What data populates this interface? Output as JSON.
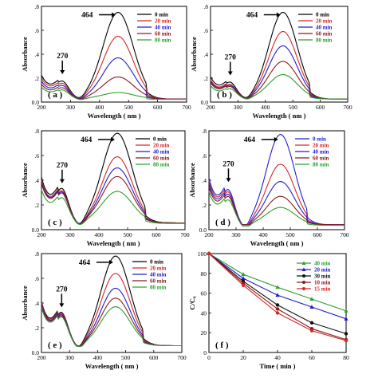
{
  "chart_data": [
    {
      "type": "line",
      "panel": "a",
      "ylabel": "Absorbance",
      "xlabel": "Wavelength ( nm )",
      "xlim": [
        200,
        700
      ],
      "ylim": [
        0.0,
        0.8
      ],
      "xticks": [
        "200",
        "300",
        "400",
        "500",
        "600",
        "700"
      ],
      "yticks": [
        ".2",
        ".4",
        ".6",
        ".8"
      ],
      "ytick_zero": "0.0",
      "annotations": [
        "464",
        "270"
      ],
      "series": [
        {
          "name": "0 min",
          "color": "#000000",
          "baseline": 0.03,
          "p1": 0.16,
          "v1": 0.08,
          "peak": 0.72,
          "tail": 0.02
        },
        {
          "name": "20 min",
          "color": "#d62728",
          "baseline": 0.03,
          "p1": 0.14,
          "v1": 0.07,
          "peak": 0.52,
          "tail": 0.02
        },
        {
          "name": "40 min",
          "color": "#1f1fd0",
          "baseline": 0.03,
          "p1": 0.12,
          "v1": 0.06,
          "peak": 0.34,
          "tail": 0.02
        },
        {
          "name": "60 min",
          "color": "#8b1a1a",
          "baseline": 0.03,
          "p1": 0.1,
          "v1": 0.05,
          "peak": 0.18,
          "tail": 0.02
        },
        {
          "name": "80 min",
          "color": "#2ca02c",
          "baseline": 0.03,
          "p1": 0.08,
          "v1": 0.045,
          "peak": 0.05,
          "tail": 0.015
        }
      ]
    },
    {
      "type": "line",
      "panel": "b",
      "ylabel": "Absorbance",
      "xlabel": "Wavelength ( nm )",
      "xlim": [
        200,
        700
      ],
      "ylim": [
        0.0,
        0.8
      ],
      "xticks": [
        "200",
        "300",
        "400",
        "500",
        "600",
        "700"
      ],
      "yticks": [
        ".2",
        ".4",
        ".6",
        ".8"
      ],
      "ytick_zero": "0.0",
      "annotations": [
        "464",
        "270"
      ],
      "series": [
        {
          "name": "0 min",
          "color": "#000000",
          "baseline": 0.03,
          "p1": 0.15,
          "v1": 0.08,
          "peak": 0.72,
          "tail": 0.02
        },
        {
          "name": "20 min",
          "color": "#d62728",
          "baseline": 0.03,
          "p1": 0.13,
          "v1": 0.07,
          "peak": 0.56,
          "tail": 0.02
        },
        {
          "name": "40 min",
          "color": "#1f1fd0",
          "baseline": 0.03,
          "p1": 0.12,
          "v1": 0.06,
          "peak": 0.44,
          "tail": 0.02
        },
        {
          "name": "60 min",
          "color": "#8b1a1a",
          "baseline": 0.03,
          "p1": 0.11,
          "v1": 0.055,
          "peak": 0.31,
          "tail": 0.02
        },
        {
          "name": "80 min",
          "color": "#2ca02c",
          "baseline": 0.03,
          "p1": 0.09,
          "v1": 0.05,
          "peak": 0.2,
          "tail": 0.02
        }
      ]
    },
    {
      "type": "line",
      "panel": "c",
      "ylabel": "Absorbance",
      "xlabel": "Wavelength ( nm )",
      "xlim": [
        200,
        700
      ],
      "ylim": [
        0.0,
        0.8
      ],
      "xticks": [
        "200",
        "300",
        "400",
        "500",
        "600",
        "700"
      ],
      "yticks": [
        ".2",
        ".4",
        ".6",
        ".8"
      ],
      "ytick_zero": "0.0",
      "annotations": [
        "464",
        "270"
      ],
      "series": [
        {
          "name": "0 min",
          "color": "#000000",
          "baseline": 0.06,
          "p1": 0.3,
          "v1": 0.14,
          "peak": 0.72,
          "tail": 0.05
        },
        {
          "name": "20 min",
          "color": "#d62728",
          "baseline": 0.06,
          "p1": 0.28,
          "v1": 0.13,
          "peak": 0.53,
          "tail": 0.05
        },
        {
          "name": "40 min",
          "color": "#1f1fd0",
          "baseline": 0.06,
          "p1": 0.27,
          "v1": 0.12,
          "peak": 0.44,
          "tail": 0.05
        },
        {
          "name": "60 min",
          "color": "#8b1a1a",
          "baseline": 0.06,
          "p1": 0.26,
          "v1": 0.12,
          "peak": 0.37,
          "tail": 0.05
        },
        {
          "name": "80 min",
          "color": "#2ca02c",
          "baseline": 0.06,
          "p1": 0.22,
          "v1": 0.11,
          "peak": 0.25,
          "tail": 0.04
        }
      ]
    },
    {
      "type": "line",
      "panel": "d",
      "ylabel": "Absorbance",
      "xlabel": "Wavelength ( nm )",
      "xlim": [
        200,
        700
      ],
      "ylim": [
        0.0,
        0.8
      ],
      "xticks": [
        "200",
        "300",
        "400",
        "500",
        "600",
        "700"
      ],
      "yticks": [
        ".2",
        ".4",
        ".6",
        ".8"
      ],
      "ytick_zero": "0.0",
      "annotations": [
        "464",
        "270"
      ],
      "series": [
        {
          "name": "0 min",
          "color": "#1f1fd0",
          "baseline": 0.04,
          "p1": 0.31,
          "v1": 0.13,
          "peak": 0.73,
          "tail": 0.04
        },
        {
          "name": "20 min",
          "color": "#d62728",
          "baseline": 0.04,
          "p1": 0.29,
          "v1": 0.12,
          "peak": 0.49,
          "tail": 0.04
        },
        {
          "name": "40 min",
          "color": "#1f1fd0",
          "baseline": 0.04,
          "p1": 0.27,
          "v1": 0.11,
          "peak": 0.35,
          "tail": 0.04
        },
        {
          "name": "60 min",
          "color": "#8b1a1a",
          "baseline": 0.04,
          "p1": 0.25,
          "v1": 0.1,
          "peak": 0.23,
          "tail": 0.04
        },
        {
          "name": "80 min",
          "color": "#2ca02c",
          "baseline": 0.04,
          "p1": 0.22,
          "v1": 0.09,
          "peak": 0.14,
          "tail": 0.03
        }
      ]
    },
    {
      "type": "line",
      "panel": "e",
      "ylabel": "Absorbance",
      "xlabel": "Wavelength ( nm )",
      "xlim": [
        200,
        700
      ],
      "ylim": [
        0.0,
        0.8
      ],
      "xticks": [
        "200",
        "300",
        "400",
        "500",
        "600",
        "700"
      ],
      "yticks": [
        ".2",
        ".4",
        ".6",
        ".8"
      ],
      "ytick_zero": "0.0",
      "annotations": [
        "464",
        "270"
      ],
      "series": [
        {
          "name": "0 min",
          "color": "#000000",
          "baseline": 0.06,
          "p1": 0.29,
          "v1": 0.14,
          "peak": 0.72,
          "tail": 0.05
        },
        {
          "name": "20 min",
          "color": "#d62728",
          "baseline": 0.06,
          "p1": 0.28,
          "v1": 0.13,
          "peak": 0.58,
          "tail": 0.05
        },
        {
          "name": "40 min",
          "color": "#1f1fd0",
          "baseline": 0.06,
          "p1": 0.27,
          "v1": 0.13,
          "peak": 0.46,
          "tail": 0.05
        },
        {
          "name": "60 min",
          "color": "#8b1a1a",
          "baseline": 0.06,
          "p1": 0.26,
          "v1": 0.12,
          "peak": 0.38,
          "tail": 0.05
        },
        {
          "name": "80 min",
          "color": "#2ca02c",
          "baseline": 0.06,
          "p1": 0.25,
          "v1": 0.12,
          "peak": 0.31,
          "tail": 0.05
        }
      ]
    },
    {
      "type": "line",
      "panel": "f",
      "ylabel": "C/C₀",
      "xlabel": "Time ( min )",
      "xlim": [
        0,
        80
      ],
      "ylim": [
        0,
        100
      ],
      "xticks": [
        "0",
        "20",
        "40",
        "60",
        "80"
      ],
      "yticks": [
        "0",
        "20",
        "40",
        "60",
        "80",
        "100"
      ],
      "x": [
        0,
        20,
        40,
        60,
        80
      ],
      "series": [
        {
          "name": "40 min",
          "color": "#2ca02c",
          "marker": "triangle",
          "values": [
            100,
            79,
            66,
            54,
            42
          ]
        },
        {
          "name": "20 min",
          "color": "#1f1fd0",
          "marker": "triangle",
          "values": [
            100,
            75,
            58,
            46,
            34
          ]
        },
        {
          "name": "30 min",
          "color": "#111111",
          "marker": "circle",
          "values": [
            100,
            72,
            48,
            30,
            19
          ]
        },
        {
          "name": "10 min",
          "color": "#8b1a1a",
          "marker": "circle",
          "values": [
            100,
            70,
            44,
            24,
            13
          ]
        },
        {
          "name": "15 min",
          "color": "#d62728",
          "marker": "circle",
          "values": [
            100,
            68,
            40,
            22,
            12
          ]
        }
      ]
    }
  ]
}
